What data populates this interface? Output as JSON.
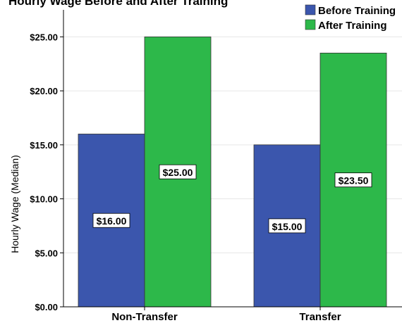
{
  "chart_data": {
    "type": "bar",
    "title": "Hourly Wage Before and After Training",
    "xlabel": "",
    "ylabel": "Hourly Wage (Median)",
    "ylim": [
      0,
      27.5
    ],
    "yticks": [
      0,
      5,
      10,
      15,
      20,
      25
    ],
    "ytick_labels": [
      "$0.00",
      "$5.00",
      "$10.00",
      "$15.00",
      "$20.00",
      "$25.00"
    ],
    "categories": [
      "Non-Transfer",
      "Transfer"
    ],
    "series": [
      {
        "name": "Before Training",
        "color": "#3b56ad",
        "values": [
          16.0,
          15.0
        ],
        "labels": [
          "$16.00",
          "$15.00"
        ]
      },
      {
        "name": "After Training",
        "color": "#2db84a",
        "values": [
          25.0,
          23.5
        ],
        "labels": [
          "$25.00",
          "$23.50"
        ]
      }
    ],
    "grid": true,
    "legend": "top-right"
  }
}
